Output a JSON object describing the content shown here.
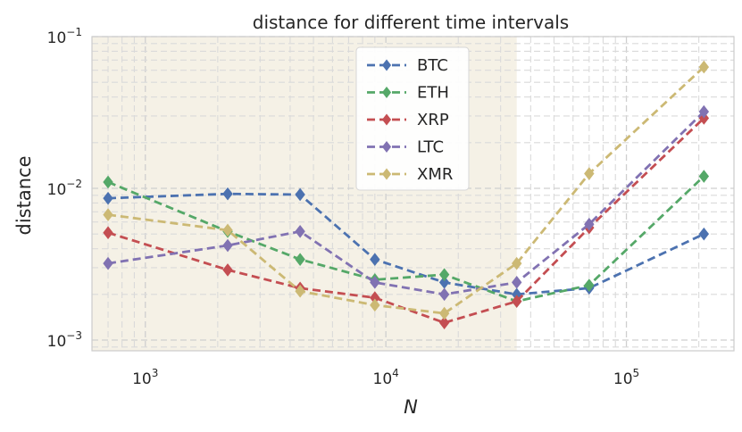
{
  "chart_data": {
    "type": "line",
    "title": "distance for different time intervals",
    "xlabel": "N",
    "ylabel": "distance",
    "xscale": "log",
    "yscale": "log",
    "xlim": [
      600,
      280000
    ],
    "ylim": [
      0.00085,
      0.1
    ],
    "grid": true,
    "legend_position": "top-center",
    "x_tick_labels": [
      {
        "value": 1000,
        "base": "10",
        "exp": "3"
      },
      {
        "value": 10000,
        "base": "10",
        "exp": "4"
      },
      {
        "value": 100000,
        "base": "10",
        "exp": "5"
      }
    ],
    "y_tick_labels": [
      {
        "value": 0.001,
        "base": "10",
        "exp": "−3"
      },
      {
        "value": 0.01,
        "base": "10",
        "exp": "−2"
      },
      {
        "value": 0.1,
        "base": "10",
        "exp": "−1"
      }
    ],
    "shaded_region": {
      "x_from": 600,
      "x_to": 35000,
      "color": "#f5f1e6"
    },
    "x": [
      700,
      2200,
      4400,
      9000,
      17500,
      35000,
      70000,
      210000
    ],
    "series": [
      {
        "name": "BTC",
        "color": "#4c72b0",
        "values": [
          0.0086,
          0.0092,
          0.0091,
          0.0034,
          0.0024,
          0.002,
          0.0022,
          0.005
        ]
      },
      {
        "name": "ETH",
        "color": "#55a868",
        "values": [
          0.011,
          0.0052,
          0.0034,
          0.0025,
          0.0027,
          0.0018,
          0.0023,
          0.012
        ]
      },
      {
        "name": "XRP",
        "color": "#c44e52",
        "values": [
          0.0051,
          0.0029,
          0.0022,
          0.0019,
          0.0013,
          0.0018,
          0.0055,
          0.029
        ]
      },
      {
        "name": "LTC",
        "color": "#8172b2",
        "values": [
          0.0032,
          0.0042,
          0.0052,
          0.0024,
          0.002,
          0.0024,
          0.0058,
          0.032
        ]
      },
      {
        "name": "XMR",
        "color": "#ccb974",
        "values": [
          0.0067,
          0.0053,
          0.0021,
          0.0017,
          0.0015,
          0.0032,
          0.0125,
          0.063
        ]
      }
    ]
  }
}
